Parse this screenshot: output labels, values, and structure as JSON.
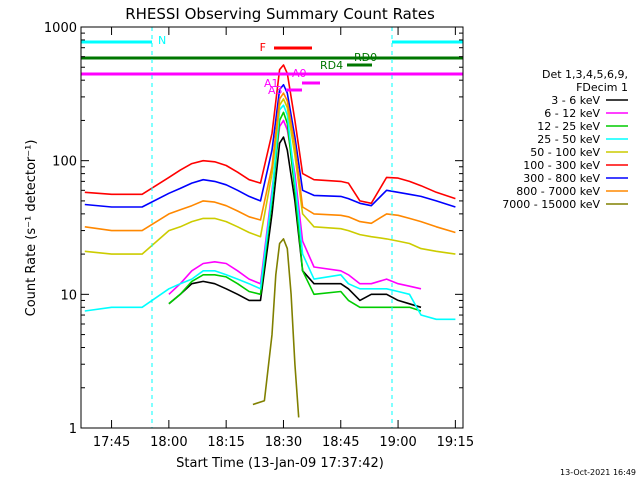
{
  "chart_data": {
    "type": "line",
    "title": "RHESSI Observing Summary Count Rates",
    "xlabel": "Start Time (13-Jan-09 17:37:42)",
    "ylabel": "Count Rate (s⁻¹ detector⁻¹)",
    "ylog": true,
    "xlim": [
      "17:37",
      "19:17"
    ],
    "ylim": [
      1,
      1000
    ],
    "x_ticks": [
      "17:45",
      "18:00",
      "18:15",
      "18:30",
      "18:45",
      "19:00",
      "19:15"
    ],
    "y_ticks": [
      "1",
      "10",
      "100",
      "1000"
    ],
    "legend": {
      "position": "right",
      "header": [
        "Det 1,3,4,5,6,9,",
        "FDecim 1"
      ]
    },
    "series": [
      {
        "name": "3 - 6 keV",
        "color": "#000000",
        "points": [
          [
            "18:00",
            8.5
          ],
          [
            "18:03",
            10
          ],
          [
            "18:06",
            12
          ],
          [
            "18:09",
            12.5
          ],
          [
            "18:12",
            12
          ],
          [
            "18:15",
            11
          ],
          [
            "18:18",
            10
          ],
          [
            "18:21",
            9
          ],
          [
            "18:24",
            9
          ],
          [
            "18:27",
            40
          ],
          [
            "18:29",
            135
          ],
          [
            "18:30",
            150
          ],
          [
            "18:31",
            120
          ],
          [
            "18:33",
            50
          ],
          [
            "18:35",
            15
          ],
          [
            "18:38",
            12
          ],
          [
            "18:45",
            12
          ],
          [
            "18:47",
            11
          ],
          [
            "18:50",
            9
          ],
          [
            "18:53",
            10
          ],
          [
            "18:57",
            10
          ],
          [
            "19:00",
            9
          ],
          [
            "19:03",
            8.5
          ],
          [
            "19:06",
            8
          ]
        ]
      },
      {
        "name": "6 - 12 keV",
        "color": "#ff00ff",
        "points": [
          [
            "18:00",
            10
          ],
          [
            "18:03",
            12
          ],
          [
            "18:06",
            15
          ],
          [
            "18:09",
            17
          ],
          [
            "18:12",
            17.5
          ],
          [
            "18:15",
            17
          ],
          [
            "18:18",
            15
          ],
          [
            "18:21",
            13
          ],
          [
            "18:24",
            12
          ],
          [
            "18:27",
            60
          ],
          [
            "18:29",
            180
          ],
          [
            "18:30",
            200
          ],
          [
            "18:31",
            170
          ],
          [
            "18:33",
            80
          ],
          [
            "18:35",
            25
          ],
          [
            "18:38",
            16
          ],
          [
            "18:45",
            15
          ],
          [
            "18:47",
            14
          ],
          [
            "18:50",
            12
          ],
          [
            "18:53",
            12
          ],
          [
            "18:57",
            13
          ],
          [
            "19:00",
            12
          ],
          [
            "19:03",
            11.5
          ],
          [
            "19:06",
            11
          ]
        ]
      },
      {
        "name": "12 - 25 keV",
        "color": "#00cc00",
        "points": [
          [
            "18:00",
            8.5
          ],
          [
            "18:03",
            10
          ],
          [
            "18:06",
            12.5
          ],
          [
            "18:09",
            14
          ],
          [
            "18:12",
            14
          ],
          [
            "18:15",
            13.5
          ],
          [
            "18:18",
            12
          ],
          [
            "18:21",
            10.5
          ],
          [
            "18:24",
            10
          ],
          [
            "18:27",
            50
          ],
          [
            "18:29",
            200
          ],
          [
            "18:30",
            230
          ],
          [
            "18:31",
            190
          ],
          [
            "18:33",
            60
          ],
          [
            "18:35",
            15
          ],
          [
            "18:38",
            10
          ],
          [
            "18:45",
            10.5
          ],
          [
            "18:47",
            9
          ],
          [
            "18:50",
            8
          ],
          [
            "18:53",
            8
          ],
          [
            "18:57",
            8
          ],
          [
            "19:00",
            8
          ],
          [
            "19:03",
            8
          ],
          [
            "19:06",
            7.5
          ]
        ]
      },
      {
        "name": "25 - 50 keV",
        "color": "#00ffff",
        "points": [
          [
            "17:38",
            7.5
          ],
          [
            "17:45",
            8
          ],
          [
            "17:53",
            8
          ],
          [
            "18:00",
            11
          ],
          [
            "18:03",
            12
          ],
          [
            "18:06",
            13
          ],
          [
            "18:09",
            15
          ],
          [
            "18:12",
            15
          ],
          [
            "18:15",
            14
          ],
          [
            "18:18",
            13
          ],
          [
            "18:21",
            12
          ],
          [
            "18:24",
            11
          ],
          [
            "18:27",
            55
          ],
          [
            "18:29",
            240
          ],
          [
            "18:30",
            260
          ],
          [
            "18:31",
            220
          ],
          [
            "18:33",
            70
          ],
          [
            "18:35",
            20
          ],
          [
            "18:38",
            13
          ],
          [
            "18:45",
            14
          ],
          [
            "18:47",
            12
          ],
          [
            "18:50",
            11
          ],
          [
            "18:53",
            11
          ],
          [
            "18:57",
            11
          ],
          [
            "19:00",
            10.5
          ],
          [
            "19:03",
            10
          ],
          [
            "19:06",
            7
          ],
          [
            "19:10",
            6.5
          ],
          [
            "19:15",
            6.5
          ]
        ]
      },
      {
        "name": "50 - 100 keV",
        "color": "#cccc00",
        "points": [
          [
            "17:38",
            21
          ],
          [
            "17:45",
            20
          ],
          [
            "17:53",
            20
          ],
          [
            "18:00",
            30
          ],
          [
            "18:03",
            32
          ],
          [
            "18:06",
            35
          ],
          [
            "18:09",
            37
          ],
          [
            "18:12",
            37
          ],
          [
            "18:15",
            35
          ],
          [
            "18:18",
            32
          ],
          [
            "18:21",
            29
          ],
          [
            "18:24",
            27
          ],
          [
            "18:27",
            80
          ],
          [
            "18:29",
            260
          ],
          [
            "18:30",
            290
          ],
          [
            "18:31",
            250
          ],
          [
            "18:33",
            110
          ],
          [
            "18:35",
            40
          ],
          [
            "18:38",
            32
          ],
          [
            "18:45",
            31
          ],
          [
            "18:47",
            30
          ],
          [
            "18:50",
            28
          ],
          [
            "18:53",
            27
          ],
          [
            "18:57",
            26
          ],
          [
            "19:00",
            25
          ],
          [
            "19:03",
            24
          ],
          [
            "19:06",
            22
          ],
          [
            "19:10",
            21
          ],
          [
            "19:15",
            20
          ]
        ]
      },
      {
        "name": "100 - 300 keV",
        "color": "#ff0000",
        "points": [
          [
            "17:38",
            58
          ],
          [
            "17:45",
            56
          ],
          [
            "17:53",
            56
          ],
          [
            "18:00",
            75
          ],
          [
            "18:03",
            85
          ],
          [
            "18:06",
            95
          ],
          [
            "18:09",
            100
          ],
          [
            "18:12",
            98
          ],
          [
            "18:15",
            92
          ],
          [
            "18:18",
            82
          ],
          [
            "18:21",
            72
          ],
          [
            "18:24",
            68
          ],
          [
            "18:27",
            160
          ],
          [
            "18:29",
            480
          ],
          [
            "18:30",
            520
          ],
          [
            "18:31",
            450
          ],
          [
            "18:33",
            200
          ],
          [
            "18:35",
            80
          ],
          [
            "18:38",
            72
          ],
          [
            "18:45",
            70
          ],
          [
            "18:47",
            68
          ],
          [
            "18:50",
            50
          ],
          [
            "18:53",
            48
          ],
          [
            "18:57",
            75
          ],
          [
            "19:00",
            74
          ],
          [
            "19:03",
            70
          ],
          [
            "19:06",
            65
          ],
          [
            "19:10",
            58
          ],
          [
            "19:15",
            52
          ]
        ]
      },
      {
        "name": "300 - 800 keV",
        "color": "#0000ff",
        "points": [
          [
            "17:38",
            47
          ],
          [
            "17:45",
            45
          ],
          [
            "17:53",
            45
          ],
          [
            "18:00",
            57
          ],
          [
            "18:03",
            62
          ],
          [
            "18:06",
            68
          ],
          [
            "18:09",
            72
          ],
          [
            "18:12",
            70
          ],
          [
            "18:15",
            66
          ],
          [
            "18:18",
            60
          ],
          [
            "18:21",
            54
          ],
          [
            "18:24",
            50
          ],
          [
            "18:27",
            120
          ],
          [
            "18:29",
            340
          ],
          [
            "18:30",
            370
          ],
          [
            "18:31",
            320
          ],
          [
            "18:33",
            150
          ],
          [
            "18:35",
            60
          ],
          [
            "18:38",
            55
          ],
          [
            "18:45",
            54
          ],
          [
            "18:47",
            52
          ],
          [
            "18:50",
            48
          ],
          [
            "18:53",
            46
          ],
          [
            "18:57",
            60
          ],
          [
            "19:00",
            58
          ],
          [
            "19:03",
            56
          ],
          [
            "19:06",
            54
          ],
          [
            "19:10",
            50
          ],
          [
            "19:15",
            45
          ]
        ]
      },
      {
        "name": "800 - 7000 keV",
        "color": "#ff8800",
        "points": [
          [
            "17:38",
            32
          ],
          [
            "17:45",
            30
          ],
          [
            "17:53",
            30
          ],
          [
            "18:00",
            40
          ],
          [
            "18:03",
            43
          ],
          [
            "18:06",
            46
          ],
          [
            "18:09",
            50
          ],
          [
            "18:12",
            49
          ],
          [
            "18:15",
            46
          ],
          [
            "18:18",
            42
          ],
          [
            "18:21",
            38
          ],
          [
            "18:24",
            36
          ],
          [
            "18:27",
            90
          ],
          [
            "18:29",
            290
          ],
          [
            "18:30",
            320
          ],
          [
            "18:31",
            280
          ],
          [
            "18:33",
            130
          ],
          [
            "18:35",
            45
          ],
          [
            "18:38",
            40
          ],
          [
            "18:45",
            39
          ],
          [
            "18:47",
            38
          ],
          [
            "18:50",
            35
          ],
          [
            "18:53",
            34
          ],
          [
            "18:57",
            40
          ],
          [
            "19:00",
            39
          ],
          [
            "19:03",
            37
          ],
          [
            "19:06",
            35
          ],
          [
            "19:10",
            32
          ],
          [
            "19:15",
            29
          ]
        ]
      },
      {
        "name": "7000 - 15000 keV",
        "color": "#808000",
        "points": [
          [
            "18:22",
            1.5
          ],
          [
            "18:25",
            1.6
          ],
          [
            "18:27",
            5
          ],
          [
            "18:28",
            14
          ],
          [
            "18:29",
            24
          ],
          [
            "18:30",
            26
          ],
          [
            "18:31",
            22
          ],
          [
            "18:32",
            10
          ],
          [
            "18:33",
            3
          ],
          [
            "18:34",
            1.2
          ]
        ]
      }
    ],
    "annotations": [
      {
        "label": "N",
        "color": "#00ffff"
      },
      {
        "label": "F",
        "color": "#ff0000"
      },
      {
        "label": "RD0",
        "color": "#007700"
      },
      {
        "label": "RD4",
        "color": "#007700"
      },
      {
        "label": "A0",
        "color": "#ff00ff"
      },
      {
        "label": "A1",
        "color": "#ff00ff"
      },
      {
        "label": "A3",
        "color": "#ff00ff"
      }
    ],
    "timestamp": "13-Oct-2021 16:49"
  }
}
